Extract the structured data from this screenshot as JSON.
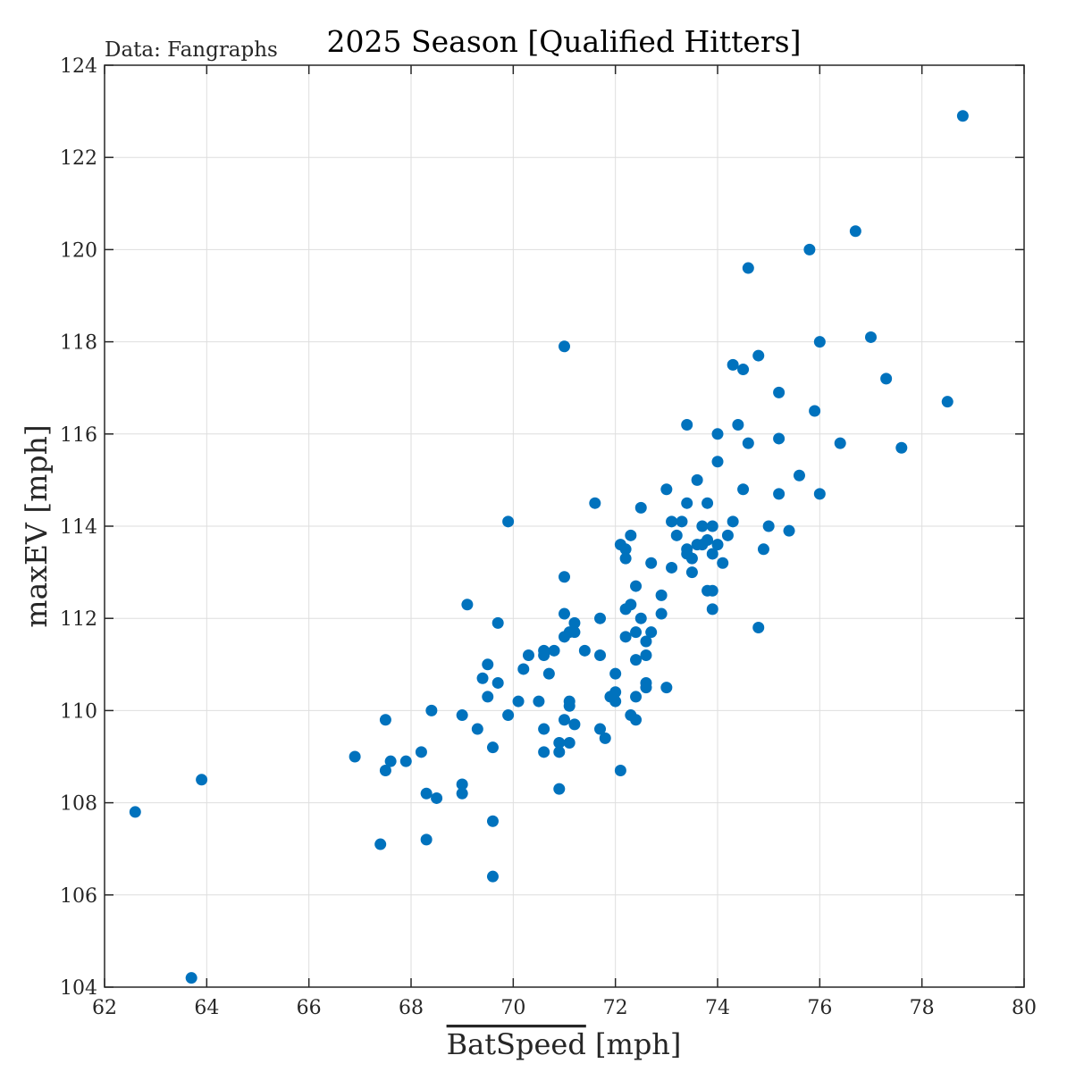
{
  "chart_data": {
    "type": "scatter",
    "title": "2025 Season [Qualified Hitters]",
    "source_note": "Data: Fangraphs",
    "xlabel_bar": "BatSpeed",
    "xlabel_unit": " [mph]",
    "ylabel": "maxEV [mph]",
    "xlim": [
      62,
      80
    ],
    "ylim": [
      104,
      124
    ],
    "xticks": [
      62,
      64,
      66,
      68,
      70,
      72,
      74,
      76,
      78,
      80
    ],
    "yticks": [
      104,
      106,
      108,
      110,
      112,
      114,
      116,
      118,
      120,
      122,
      124
    ],
    "grid": true,
    "legend": "none",
    "marker_color": "#0072BD",
    "x": [
      62.6,
      63.7,
      63.9,
      66.9,
      67.4,
      67.5,
      67.6,
      67.5,
      67.9,
      68.2,
      68.3,
      68.3,
      68.4,
      68.5,
      69.0,
      69.0,
      69.0,
      69.1,
      69.3,
      69.4,
      69.5,
      69.5,
      69.6,
      69.6,
      69.7,
      69.7,
      69.9,
      69.9,
      69.6,
      70.1,
      70.2,
      70.3,
      70.5,
      70.6,
      70.6,
      70.6,
      70.6,
      70.7,
      70.8,
      70.9,
      70.9,
      70.9,
      71.0,
      71.0,
      71.0,
      71.0,
      71.0,
      71.1,
      71.1,
      71.1,
      71.1,
      71.2,
      71.2,
      71.2,
      71.4,
      71.6,
      71.7,
      71.7,
      71.7,
      71.8,
      71.9,
      72.0,
      72.0,
      72.0,
      72.1,
      72.1,
      72.2,
      72.2,
      72.2,
      72.2,
      72.3,
      72.3,
      72.3,
      72.4,
      72.4,
      72.4,
      72.4,
      72.4,
      72.5,
      72.5,
      72.6,
      72.6,
      72.6,
      72.6,
      72.7,
      72.7,
      72.9,
      72.9,
      73.0,
      73.0,
      73.1,
      73.1,
      73.2,
      73.3,
      73.4,
      73.4,
      73.4,
      73.4,
      73.5,
      73.5,
      73.6,
      73.6,
      73.7,
      73.7,
      73.8,
      73.8,
      73.8,
      73.9,
      73.9,
      73.9,
      73.9,
      74.0,
      74.0,
      74.0,
      74.1,
      74.2,
      74.3,
      74.3,
      74.4,
      74.5,
      74.5,
      74.6,
      74.6,
      74.8,
      74.8,
      74.9,
      75.0,
      75.2,
      75.2,
      75.2,
      75.4,
      75.6,
      75.8,
      75.9,
      76.0,
      76.0,
      76.4,
      76.7,
      77.0,
      77.3,
      77.6,
      78.5,
      78.8
    ],
    "y": [
      107.8,
      104.2,
      108.5,
      109.0,
      107.1,
      109.8,
      108.9,
      108.7,
      108.9,
      109.1,
      108.2,
      107.2,
      110.0,
      108.1,
      109.9,
      108.4,
      108.2,
      112.3,
      109.6,
      110.7,
      111.0,
      110.3,
      109.2,
      106.4,
      111.9,
      110.6,
      109.9,
      114.1,
      107.6,
      110.2,
      110.9,
      111.2,
      110.2,
      111.3,
      109.6,
      109.1,
      111.2,
      110.8,
      111.3,
      108.3,
      109.3,
      109.1,
      112.9,
      117.9,
      111.6,
      112.1,
      109.8,
      111.7,
      110.1,
      110.2,
      109.3,
      111.9,
      109.7,
      111.7,
      111.3,
      114.5,
      112.0,
      111.2,
      109.6,
      109.4,
      110.3,
      110.8,
      110.4,
      110.2,
      108.7,
      113.6,
      113.3,
      113.5,
      112.2,
      111.6,
      112.3,
      113.8,
      109.9,
      111.1,
      111.7,
      112.7,
      109.8,
      110.3,
      114.4,
      112.0,
      111.5,
      111.2,
      110.6,
      110.5,
      111.7,
      113.2,
      112.1,
      112.5,
      114.8,
      110.5,
      114.1,
      113.1,
      113.8,
      114.1,
      116.2,
      113.4,
      113.5,
      114.5,
      113.0,
      113.3,
      115.0,
      113.6,
      114.0,
      113.6,
      114.5,
      112.6,
      113.7,
      112.6,
      113.4,
      114.0,
      112.2,
      113.6,
      116.0,
      115.4,
      113.2,
      113.8,
      117.5,
      114.1,
      116.2,
      117.4,
      114.8,
      119.6,
      115.8,
      117.7,
      111.8,
      113.5,
      114.0,
      116.9,
      115.9,
      114.7,
      113.9,
      115.1,
      120.0,
      116.5,
      118.0,
      114.7,
      115.8,
      120.4,
      118.1,
      117.2,
      115.7,
      116.7,
      122.9
    ]
  }
}
